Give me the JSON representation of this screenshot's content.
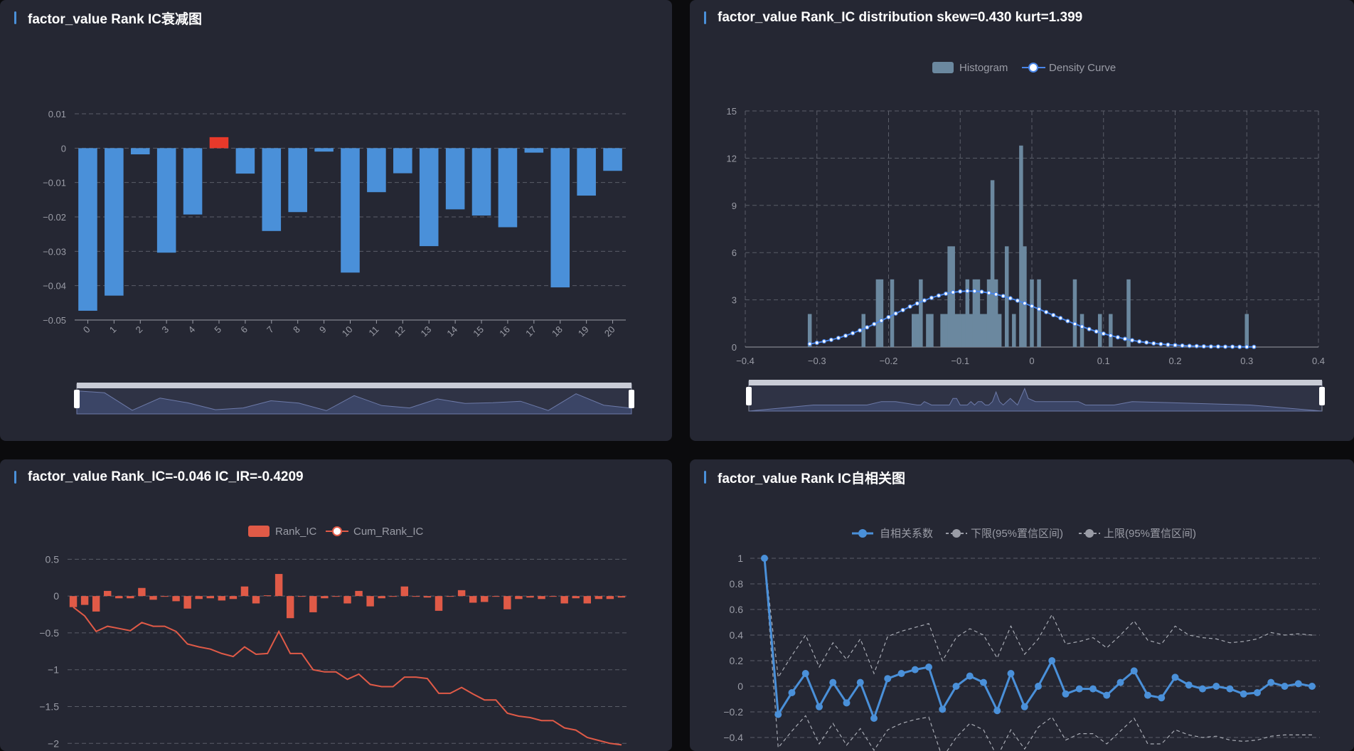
{
  "colors": {
    "blue": "#4a90d9",
    "red": "#e8392a",
    "redline": "#e05a47",
    "gray": "#9a9ca6",
    "grid": "#5a5d68",
    "axis": "#9a9ca6",
    "hist": "#6b889f"
  },
  "panels": {
    "decay": {
      "title": "factor_value Rank IC衰减图"
    },
    "dist": {
      "title": "factor_value Rank_IC distribution skew=0.430 kurt=1.399"
    },
    "cum": {
      "title": "factor_value Rank_IC=-0.046 IC_IR=-0.4209"
    },
    "acf": {
      "title": "factor_value Rank IC自相关图"
    }
  },
  "chart_data": [
    {
      "id": "decay",
      "type": "bar",
      "categories": [
        "0",
        "1",
        "2",
        "3",
        "4",
        "5",
        "6",
        "7",
        "8",
        "9",
        "10",
        "11",
        "12",
        "13",
        "14",
        "15",
        "16",
        "17",
        "18",
        "19",
        "20"
      ],
      "values": [
        -0.0473,
        -0.0429,
        -0.0018,
        -0.0304,
        -0.0193,
        0.0032,
        -0.0074,
        -0.0241,
        -0.0186,
        -0.001,
        -0.0362,
        -0.0128,
        -0.0073,
        -0.0285,
        -0.0178,
        -0.0196,
        -0.023,
        -0.0013,
        -0.0405,
        -0.0138,
        -0.0066
      ],
      "ylim": [
        -0.05,
        0.01
      ],
      "yticks": [
        "0.01",
        "0",
        "−0.01",
        "−0.02",
        "−0.03",
        "−0.04",
        "−0.05"
      ],
      "ytick_values": [
        0.01,
        0,
        -0.01,
        -0.02,
        -0.03,
        -0.04,
        -0.05
      ],
      "grid": true
    },
    {
      "id": "dist",
      "type": "bar",
      "legend": [
        "Histogram",
        "Density Curve"
      ],
      "x": [
        -0.31,
        -0.235,
        -0.215,
        -0.21,
        -0.195,
        -0.165,
        -0.16,
        -0.155,
        -0.145,
        -0.14,
        -0.125,
        -0.12,
        -0.115,
        -0.11,
        -0.105,
        -0.1,
        -0.095,
        -0.09,
        -0.085,
        -0.08,
        -0.075,
        -0.07,
        -0.065,
        -0.06,
        -0.055,
        -0.05,
        -0.045,
        -0.035,
        -0.025,
        -0.015,
        -0.01,
        0.0,
        0.01,
        0.06,
        0.07,
        0.095,
        0.11,
        0.135,
        0.3
      ],
      "counts": [
        2.1,
        2.1,
        4.3,
        4.3,
        4.3,
        2.1,
        2.1,
        4.3,
        2.1,
        2.1,
        2.1,
        2.1,
        6.4,
        6.4,
        2.1,
        2.1,
        2.1,
        4.3,
        2.1,
        4.3,
        4.3,
        2.1,
        2.1,
        4.3,
        10.6,
        4.3,
        2.1,
        6.4,
        2.1,
        12.8,
        6.4,
        4.3,
        4.3,
        4.3,
        2.1,
        2.1,
        2.1,
        4.3,
        2.1
      ],
      "density": {
        "x": [
          -0.31,
          -0.3,
          -0.29,
          -0.28,
          -0.27,
          -0.26,
          -0.25,
          -0.24,
          -0.23,
          -0.22,
          -0.21,
          -0.2,
          -0.19,
          -0.18,
          -0.17,
          -0.16,
          -0.15,
          -0.14,
          -0.13,
          -0.12,
          -0.11,
          -0.1,
          -0.09,
          -0.08,
          -0.07,
          -0.06,
          -0.05,
          -0.04,
          -0.03,
          -0.02,
          -0.01,
          0.0,
          0.01,
          0.02,
          0.03,
          0.04,
          0.05,
          0.06,
          0.07,
          0.08,
          0.09,
          0.1,
          0.11,
          0.12,
          0.13,
          0.14,
          0.15,
          0.16,
          0.17,
          0.18,
          0.19,
          0.2,
          0.21,
          0.22,
          0.23,
          0.24,
          0.25,
          0.26,
          0.27,
          0.28,
          0.29,
          0.3,
          0.31
        ],
        "y": [
          0.2,
          0.27,
          0.36,
          0.46,
          0.58,
          0.72,
          0.88,
          1.06,
          1.25,
          1.46,
          1.68,
          1.9,
          2.13,
          2.35,
          2.57,
          2.77,
          2.96,
          3.13,
          3.27,
          3.39,
          3.48,
          3.53,
          3.56,
          3.55,
          3.51,
          3.44,
          3.35,
          3.24,
          3.1,
          2.95,
          2.78,
          2.6,
          2.41,
          2.22,
          2.03,
          1.84,
          1.65,
          1.47,
          1.3,
          1.14,
          0.99,
          0.85,
          0.73,
          0.62,
          0.52,
          0.43,
          0.35,
          0.29,
          0.23,
          0.19,
          0.15,
          0.12,
          0.09,
          0.07,
          0.06,
          0.04,
          0.03,
          0.03,
          0.02,
          0.02,
          0.01,
          0.01,
          0.01
        ]
      },
      "xlim": [
        -0.4,
        0.4
      ],
      "ylim": [
        0,
        15
      ],
      "xticks": [
        "−0.4",
        "−0.3",
        "−0.2",
        "−0.1",
        "0",
        "0.1",
        "0.2",
        "0.3",
        "0.4"
      ],
      "xtick_values": [
        -0.4,
        -0.3,
        -0.2,
        -0.1,
        0,
        0.1,
        0.2,
        0.3,
        0.4
      ],
      "yticks": [
        "0",
        "3",
        "6",
        "9",
        "12",
        "15"
      ],
      "ytick_values": [
        0,
        3,
        6,
        9,
        12,
        15
      ],
      "grid": true
    },
    {
      "id": "cum",
      "type": "bar",
      "legend": [
        "Rank_IC",
        "Cum_Rank_IC"
      ],
      "values": [
        -0.15,
        -0.12,
        -0.21,
        0.07,
        -0.03,
        -0.03,
        0.11,
        -0.05,
        0.0,
        -0.07,
        -0.17,
        -0.04,
        -0.03,
        -0.06,
        -0.04,
        0.13,
        -0.1,
        0.01,
        0.3,
        -0.3,
        0.0,
        -0.22,
        -0.03,
        0.0,
        -0.1,
        0.07,
        -0.14,
        -0.03,
        0.0,
        0.13,
        0.0,
        -0.02,
        -0.2,
        0.0,
        0.08,
        -0.09,
        -0.08,
        0.0,
        -0.18,
        -0.04,
        -0.02,
        -0.04,
        0.0,
        -0.1,
        -0.03,
        -0.1,
        -0.04,
        -0.04,
        -0.02
      ],
      "cumulative": [
        -0.15,
        -0.27,
        -0.48,
        -0.41,
        -0.44,
        -0.47,
        -0.36,
        -0.41,
        -0.41,
        -0.48,
        -0.65,
        -0.69,
        -0.72,
        -0.78,
        -0.82,
        -0.69,
        -0.79,
        -0.78,
        -0.48,
        -0.78,
        -0.78,
        -1.0,
        -1.03,
        -1.03,
        -1.13,
        -1.06,
        -1.2,
        -1.23,
        -1.23,
        -1.1,
        -1.1,
        -1.12,
        -1.32,
        -1.32,
        -1.24,
        -1.33,
        -1.41,
        -1.41,
        -1.59,
        -1.63,
        -1.65,
        -1.69,
        -1.69,
        -1.79,
        -1.82,
        -1.92,
        -1.96,
        -2.0,
        -2.02
      ],
      "ylim": [
        -2.2,
        0.6
      ],
      "yticks": [
        "0.5",
        "0",
        "−0.5",
        "−1",
        "−1.5",
        "−2"
      ],
      "ytick_values": [
        0.5,
        0,
        -0.5,
        -1,
        -1.5,
        -2
      ],
      "grid": true
    },
    {
      "id": "acf",
      "type": "line",
      "legend": [
        "自相关系数",
        "下限(95%置信区间)",
        "上限(95%置信区间)"
      ],
      "x": [
        0,
        1,
        2,
        3,
        4,
        5,
        6,
        7,
        8,
        9,
        10,
        11,
        12,
        13,
        14,
        15,
        16,
        17,
        18,
        19,
        20,
        21,
        22,
        23,
        24,
        25,
        26,
        27,
        28,
        29,
        30,
        31,
        32,
        33,
        34,
        35,
        36,
        37,
        38,
        39,
        40
      ],
      "series": [
        {
          "name": "自相关系数",
          "values": [
            1.0,
            -0.22,
            -0.05,
            0.1,
            -0.16,
            0.03,
            -0.13,
            0.03,
            -0.25,
            0.06,
            0.1,
            0.13,
            0.15,
            -0.18,
            0.0,
            0.08,
            0.03,
            -0.19,
            0.1,
            -0.16,
            0.0,
            0.2,
            -0.06,
            -0.02,
            -0.02,
            -0.07,
            0.03,
            0.12,
            -0.07,
            -0.09,
            0.07,
            0.01,
            -0.02,
            0.0,
            -0.02,
            -0.06,
            -0.05,
            0.03,
            0.0,
            0.02,
            0.0
          ]
        },
        {
          "name": "下限(95%置信区间)",
          "values": [
            1.0,
            -0.48,
            -0.35,
            -0.23,
            -0.45,
            -0.29,
            -0.46,
            -0.33,
            -0.5,
            -0.34,
            -0.29,
            -0.26,
            -0.24,
            -0.56,
            -0.4,
            -0.29,
            -0.34,
            -0.55,
            -0.34,
            -0.49,
            -0.32,
            -0.24,
            -0.42,
            -0.37,
            -0.37,
            -0.45,
            -0.35,
            -0.25,
            -0.45,
            -0.45,
            -0.34,
            -0.38,
            -0.4,
            -0.39,
            -0.42,
            -0.43,
            -0.42,
            -0.39,
            -0.38,
            -0.38,
            -0.38
          ]
        },
        {
          "name": "上限(95%置信区间)",
          "values": [
            1.0,
            0.07,
            0.24,
            0.4,
            0.15,
            0.34,
            0.21,
            0.37,
            0.1,
            0.39,
            0.43,
            0.46,
            0.49,
            0.2,
            0.38,
            0.45,
            0.4,
            0.22,
            0.47,
            0.25,
            0.37,
            0.56,
            0.33,
            0.35,
            0.38,
            0.3,
            0.4,
            0.51,
            0.36,
            0.33,
            0.47,
            0.4,
            0.38,
            0.37,
            0.34,
            0.35,
            0.37,
            0.42,
            0.4,
            0.41,
            0.4
          ]
        }
      ],
      "ylim": [
        -0.45,
        1.05
      ],
      "yticks": [
        "1",
        "0.8",
        "0.6",
        "0.4",
        "0.2",
        "0",
        "−0.2",
        "−0.4"
      ],
      "ytick_values": [
        1,
        0.8,
        0.6,
        0.4,
        0.2,
        0,
        -0.2,
        -0.4
      ],
      "grid": true
    }
  ]
}
